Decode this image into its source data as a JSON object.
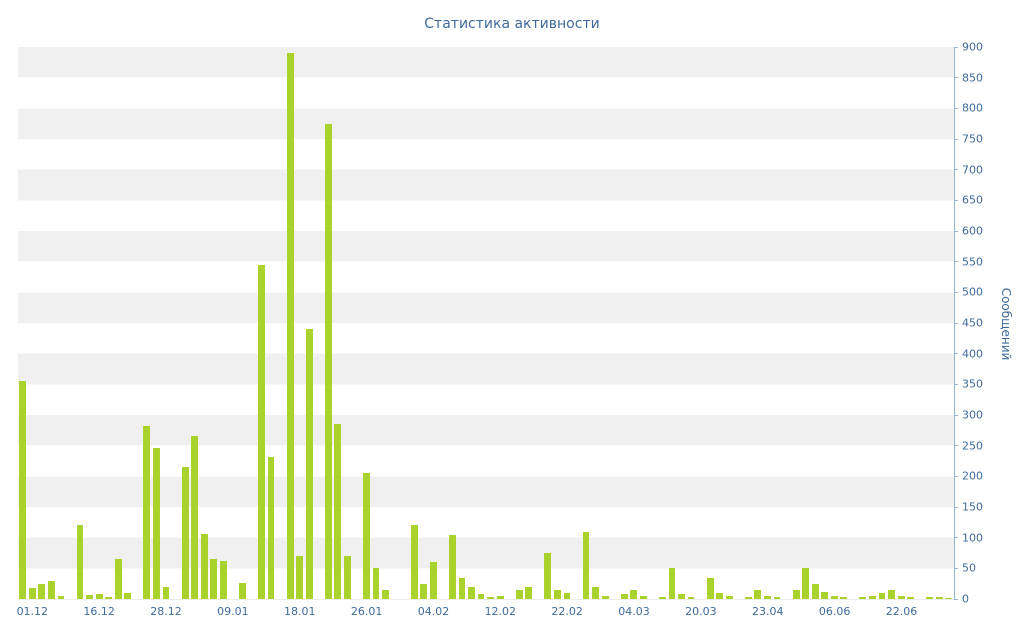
{
  "chart_data": {
    "type": "bar",
    "title": "Статистика активности",
    "ylabel": "Сообщений",
    "xlabel": "",
    "ylim": [
      0,
      900
    ],
    "y_tick_step": 50,
    "grid": "alternating-horizontal-bands",
    "legend": "none",
    "colors": {
      "bar": "#a9d32c",
      "axis_text": "#3e6b9c",
      "axis_line": "#9ab4d0",
      "stripe": "#f0f0f0",
      "background": "#ffffff"
    },
    "x_ticks": [
      {
        "i": 1,
        "label": "01.12"
      },
      {
        "i": 8,
        "label": "16.12"
      },
      {
        "i": 15,
        "label": "28.12"
      },
      {
        "i": 22,
        "label": "09.01"
      },
      {
        "i": 29,
        "label": "18.01"
      },
      {
        "i": 36,
        "label": "26.01"
      },
      {
        "i": 43,
        "label": "04.02"
      },
      {
        "i": 50,
        "label": "12.02"
      },
      {
        "i": 57,
        "label": "22.02"
      },
      {
        "i": 64,
        "label": "04.03"
      },
      {
        "i": 71,
        "label": "20.03"
      },
      {
        "i": 78,
        "label": "23.04"
      },
      {
        "i": 85,
        "label": "06.06"
      },
      {
        "i": 92,
        "label": "22.06"
      }
    ],
    "values": [
      355,
      18,
      25,
      30,
      5,
      0,
      120,
      7,
      8,
      3,
      65,
      10,
      0,
      282,
      246,
      20,
      0,
      215,
      265,
      106,
      65,
      62,
      0,
      26,
      0,
      545,
      231,
      0,
      890,
      70,
      441,
      0,
      775,
      286,
      70,
      0,
      205,
      50,
      15,
      0,
      0,
      120,
      25,
      60,
      0,
      105,
      35,
      20,
      8,
      4,
      5,
      0,
      15,
      20,
      0,
      75,
      15,
      10,
      0,
      110,
      20,
      5,
      0,
      8,
      15,
      5,
      0,
      3,
      50,
      8,
      4,
      0,
      35,
      10,
      5,
      0,
      3,
      15,
      5,
      3,
      0,
      15,
      50,
      25,
      12,
      5,
      3,
      0,
      3,
      5,
      10,
      15,
      5,
      3,
      0,
      3,
      4,
      2
    ]
  }
}
